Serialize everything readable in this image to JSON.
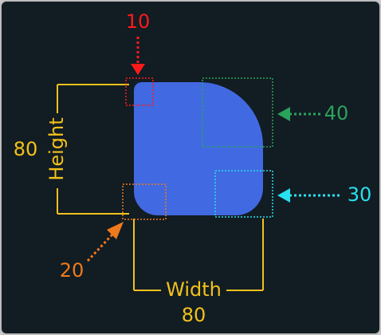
{
  "colors": {
    "background": "#121c23",
    "shape": "#4169e1",
    "dimension": "#f2c21b",
    "corner_top_left": "#ff1a1a",
    "corner_top_right": "#2aa35b",
    "corner_bottom_right": "#29e0ee",
    "corner_bottom_left": "#f07a1b"
  },
  "shape": {
    "width_value": "80",
    "height_value": "80",
    "width_label": "Width",
    "height_label": "Height"
  },
  "corners": {
    "top_left": "10",
    "top_right": "40",
    "bottom_right": "30",
    "bottom_left": "20"
  }
}
